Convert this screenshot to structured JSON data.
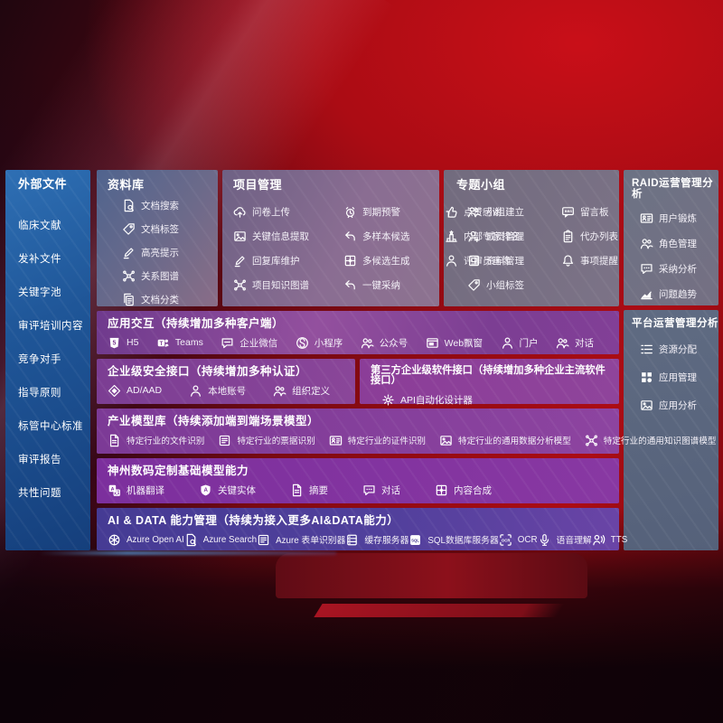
{
  "colors": {
    "background_red": "#a50b13",
    "sidebar_blue": "#1e5a9e",
    "panel_purple": "#7d3f97",
    "panel_indigo": "#4b3c99",
    "panel_gray": "#6f7385",
    "text": "#ffffff"
  },
  "sidebar": {
    "title": "外部文件",
    "items": [
      "临床文献",
      "发补文件",
      "关键字池",
      "审评培训内容",
      "竞争对手",
      "指导原则",
      "标管中心标准",
      "审评报告",
      "共性问题"
    ]
  },
  "library": {
    "title": "资料库",
    "items": [
      {
        "label": "文档搜索",
        "icon": "doc-search"
      },
      {
        "label": "文档标签",
        "icon": "tag"
      },
      {
        "label": "高亮提示",
        "icon": "pen"
      },
      {
        "label": "关系图谱",
        "icon": "graph"
      },
      {
        "label": "文档分类",
        "icon": "doc-copy"
      }
    ]
  },
  "project": {
    "title": "项目管理",
    "items": [
      {
        "label": "问卷上传",
        "icon": "cloud-up"
      },
      {
        "label": "关键信息提取",
        "icon": "image"
      },
      {
        "label": "回复库维护",
        "icon": "pen"
      },
      {
        "label": "项目知识图谱",
        "icon": "graph"
      },
      {
        "label": "到期预警",
        "icon": "alarm"
      },
      {
        "label": "多样本候选",
        "icon": "reply"
      },
      {
        "label": "多候选生成",
        "icon": "puzzle"
      },
      {
        "label": "一键采纳",
        "icon": "reply"
      },
      {
        "label": "点赞感谢",
        "icon": "thumb"
      },
      {
        "label": "内部专家排名",
        "icon": "podium"
      },
      {
        "label": "评审员画像",
        "icon": "person"
      }
    ]
  },
  "groups": {
    "title": "专题小组",
    "items": [
      {
        "label": "小组建立",
        "icon": "people"
      },
      {
        "label": "成员管理",
        "icon": "person-add"
      },
      {
        "label": "资料管理",
        "icon": "album"
      },
      {
        "label": "小组标签",
        "icon": "tag"
      },
      {
        "label": "留言板",
        "icon": "bbs"
      },
      {
        "label": "代办列表",
        "icon": "clipboard"
      },
      {
        "label": "事项提醒",
        "icon": "bell"
      }
    ]
  },
  "raid": {
    "title": "RAID运营管理分析",
    "items": [
      {
        "label": "用户锻炼",
        "icon": "id-card"
      },
      {
        "label": "角色管理",
        "icon": "people"
      },
      {
        "label": "采纳分析",
        "icon": "chat-dots"
      },
      {
        "label": "问题趋势",
        "icon": "trend"
      }
    ]
  },
  "platform": {
    "title": "平台运营管理分析",
    "items": [
      {
        "label": "资源分配",
        "icon": "list"
      },
      {
        "label": "应用管理",
        "icon": "grid"
      },
      {
        "label": "应用分析",
        "icon": "image"
      }
    ]
  },
  "interaction": {
    "title": "应用交互（持续增加多种客户端）",
    "items": [
      {
        "label": "H5",
        "icon": "h5"
      },
      {
        "label": "Teams",
        "icon": "teams"
      },
      {
        "label": "企业微信",
        "icon": "chat"
      },
      {
        "label": "小程序",
        "icon": "mini"
      },
      {
        "label": "公众号",
        "icon": "people"
      },
      {
        "label": "Web飘窗",
        "icon": "window"
      },
      {
        "label": "门户",
        "icon": "person"
      },
      {
        "label": "对话",
        "icon": "people"
      }
    ]
  },
  "security": {
    "title": "企业级安全接口（持续增加多种认证）",
    "items": [
      {
        "label": "AD/AAD",
        "icon": "diamond"
      },
      {
        "label": "本地账号",
        "icon": "person"
      },
      {
        "label": "组织定义",
        "icon": "people"
      }
    ]
  },
  "thirdparty": {
    "title": "第三方企业级软件接口（持续增加多种企业主流软件接口）",
    "items": [
      {
        "label": "API自动化设计器",
        "icon": "gear"
      }
    ]
  },
  "models": {
    "title": "产业模型库（持续添加端到端场景模型）",
    "items": [
      {
        "label": "特定行业的文件识别",
        "icon": "doc"
      },
      {
        "label": "特定行业的票据识别",
        "icon": "form"
      },
      {
        "label": "特定行业的证件识别",
        "icon": "id-card"
      },
      {
        "label": "特定行业的通用数据分析模型",
        "icon": "image"
      },
      {
        "label": "特定行业的通用知识图谱模型",
        "icon": "graph"
      }
    ]
  },
  "foundation": {
    "title": "神州数码定制基础模型能力",
    "items": [
      {
        "label": "机器翻译",
        "icon": "translate"
      },
      {
        "label": "关键实体",
        "icon": "shield"
      },
      {
        "label": "摘要",
        "icon": "doc"
      },
      {
        "label": "对话",
        "icon": "chat-dots"
      },
      {
        "label": "内容合成",
        "icon": "puzzle"
      }
    ]
  },
  "aidata": {
    "title": "AI & DATA 能力管理（持续为接入更多AI&DATA能力）",
    "items": [
      {
        "label": "Azure Open AI",
        "icon": "openai"
      },
      {
        "label": "Azure Search",
        "icon": "doc-search"
      },
      {
        "label": "Azure 表单识别器",
        "icon": "form"
      },
      {
        "label": "缓存服务器",
        "icon": "server"
      },
      {
        "label": "SQL数据库服务器",
        "icon": "db"
      },
      {
        "label": "OCR",
        "icon": "ocr"
      },
      {
        "label": "语音理解",
        "icon": "mic"
      },
      {
        "label": "TTS",
        "icon": "tts"
      }
    ]
  }
}
